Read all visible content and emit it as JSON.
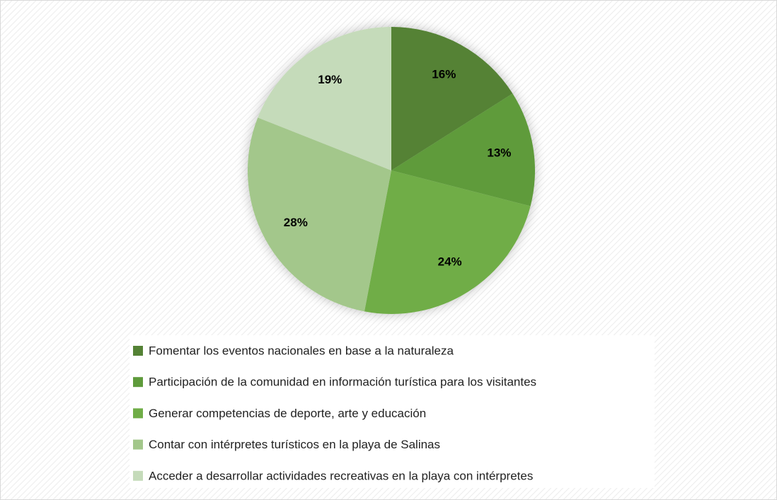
{
  "chart_data": {
    "type": "pie",
    "categories": [
      "Fomentar los eventos nacionales en base a la naturaleza",
      "Participación de la comunidad en información turística para los visitantes",
      "Generar competencias de deporte, arte y educación",
      "Contar con intérpretes turísticos en la playa de Salinas",
      "Acceder a desarrollar actividades recreativas en la playa con intérpretes"
    ],
    "values": [
      16,
      13,
      24,
      28,
      19
    ],
    "value_labels": [
      "16%",
      "13%",
      "24%",
      "28%",
      "19%"
    ],
    "colors": [
      "#548235",
      "#5e9b3b",
      "#70ad47",
      "#a3c78b",
      "#c5dbba"
    ],
    "legend": "bottom"
  }
}
